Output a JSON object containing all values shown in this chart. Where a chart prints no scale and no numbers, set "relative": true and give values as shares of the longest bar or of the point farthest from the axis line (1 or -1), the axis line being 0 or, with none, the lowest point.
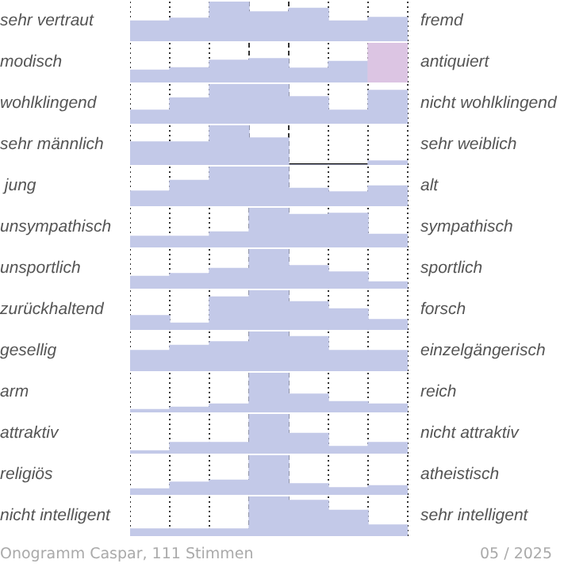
{
  "chart_data": [
    {
      "type": "bar",
      "ylabel": "sehr vertraut",
      "y2label": "fremd",
      "categories": [
        null,
        null,
        null,
        null,
        null,
        null,
        null
      ],
      "values": [
        0.51,
        0.58,
        1,
        0.74,
        0.83,
        0.51,
        0.6
      ],
      "relative": true,
      "color": "#c3c9e8",
      "grid": "x"
    },
    {
      "type": "bar",
      "ylabel": "modisch",
      "y2label": "antiquiert",
      "categories": [
        null,
        null,
        null,
        null,
        null,
        null,
        null
      ],
      "values": [
        0.31,
        0.37,
        0.56,
        0.6,
        0.36,
        0.53,
        1
      ],
      "relative": true,
      "colors": [
        "#c3c9e8",
        "#c3c9e8",
        "#c3c9e8",
        "#c3c9e8",
        "#c3c9e8",
        "#c3c9e8",
        "#dcc5e3"
      ],
      "grid": "x"
    },
    {
      "type": "bar",
      "ylabel": "wohlklingend",
      "y2label": "nicht wohlklingend",
      "categories": [
        null,
        null,
        null,
        null,
        null,
        null,
        null
      ],
      "values": [
        0.34,
        0.65,
        1,
        1,
        0.68,
        0.34,
        0.84
      ],
      "relative": true,
      "color": "#c3c9e8",
      "grid": "x"
    },
    {
      "type": "bar",
      "ylabel": "sehr männlich",
      "y2label": "sehr weiblich",
      "categories": [
        null,
        null,
        null,
        null,
        null,
        null,
        null
      ],
      "values": [
        0.58,
        0.58,
        1,
        0.68,
        0,
        0,
        0.1
      ],
      "relative": true,
      "color": "#c3c9e8",
      "grid": "x"
    },
    {
      "type": "bar",
      "ylabel": " jung",
      "y2label": "alt",
      "categories": [
        null,
        null,
        null,
        null,
        null,
        null,
        null
      ],
      "values": [
        0.38,
        0.65,
        1,
        1,
        0.45,
        0.36,
        0.51
      ],
      "relative": true,
      "color": "#c3c9e8",
      "grid": "x"
    },
    {
      "type": "bar",
      "ylabel": "unsympathisch",
      "y2label": "sympathisch",
      "categories": [
        null,
        null,
        null,
        null,
        null,
        null,
        null
      ],
      "values": [
        0.28,
        0.28,
        0.39,
        1,
        0.83,
        0.86,
        0.33
      ],
      "relative": true,
      "color": "#c3c9e8",
      "grid": "x"
    },
    {
      "type": "bar",
      "ylabel": "unsportlich",
      "y2label": "sportlich",
      "categories": [
        null,
        null,
        null,
        null,
        null,
        null,
        null
      ],
      "values": [
        0.31,
        0.38,
        0.51,
        1,
        0.58,
        0.42,
        0.17
      ],
      "relative": true,
      "color": "#c3c9e8",
      "grid": "x"
    },
    {
      "type": "bar",
      "ylabel": "zurückhaltend",
      "y2label": "forsch",
      "categories": [
        null,
        null,
        null,
        null,
        null,
        null,
        null
      ],
      "values": [
        0.36,
        0.17,
        0.83,
        1,
        0.71,
        0.53,
        0.26
      ],
      "relative": true,
      "color": "#c3c9e8",
      "grid": "x"
    },
    {
      "type": "bar",
      "ylabel": "gesellig",
      "y2label": "einzelgängerisch",
      "categories": [
        null,
        null,
        null,
        null,
        null,
        null,
        null
      ],
      "values": [
        0.52,
        0.65,
        0.74,
        1,
        0.87,
        0.52,
        0.52
      ],
      "relative": true,
      "color": "#c3c9e8",
      "grid": "x"
    },
    {
      "type": "bar",
      "ylabel": "arm",
      "y2label": "reich",
      "categories": [
        null,
        null,
        null,
        null,
        null,
        null,
        null
      ],
      "values": [
        0.07,
        0.13,
        0.21,
        1,
        0.46,
        0.27,
        0.21
      ],
      "relative": true,
      "color": "#c3c9e8",
      "grid": "x"
    },
    {
      "type": "bar",
      "ylabel": "attraktiv",
      "y2label": "nicht attraktiv",
      "categories": [
        null,
        null,
        null,
        null,
        null,
        null,
        null
      ],
      "values": [
        0.07,
        0.28,
        0.28,
        1,
        0.51,
        0.18,
        0.28
      ],
      "relative": true,
      "color": "#c3c9e8",
      "grid": "x"
    },
    {
      "type": "bar",
      "ylabel": "religiös",
      "y2label": "atheistisch",
      "categories": [
        null,
        null,
        null,
        null,
        null,
        null,
        null
      ],
      "values": [
        0.15,
        0.32,
        0.37,
        1,
        0.28,
        0.18,
        0.23
      ],
      "relative": true,
      "color": "#c3c9e8",
      "grid": "x"
    },
    {
      "type": "bar",
      "ylabel": "nicht intelligent",
      "y2label": "sehr intelligent",
      "categories": [
        null,
        null,
        null,
        null,
        null,
        null,
        null
      ],
      "values": [
        0.18,
        0.18,
        0.18,
        1,
        0.9,
        0.65,
        0.28
      ],
      "relative": true,
      "color": "#c3c9e8",
      "grid": "x",
      "annotations": [
        "Onogramm Caspar, 111 Stimmen",
        "05 / 2025"
      ]
    }
  ]
}
